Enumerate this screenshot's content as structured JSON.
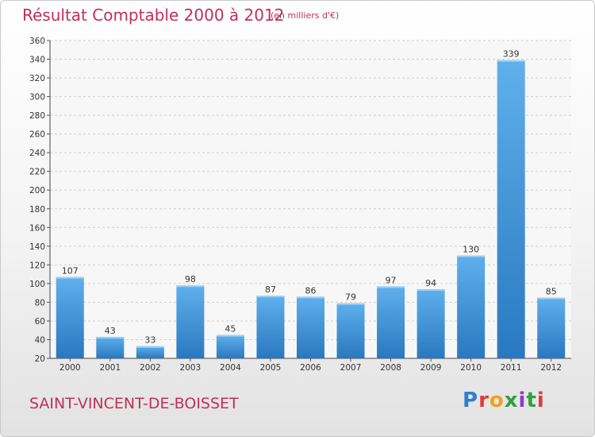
{
  "header": {
    "title": "Résultat Comptable 2000 à 2012",
    "subtitle": "(en milliers d'€)"
  },
  "footer": {
    "town": "SAINT-VINCENT-DE-BOISSET",
    "logo": "Proxiti",
    "logo_colors": [
      "#2f7fcf",
      "#e03a3a",
      "#f0a020",
      "#2f9f3f",
      "#8a3fbf",
      "#2f9f3f",
      "#e03a3a"
    ]
  },
  "chart_data": {
    "type": "bar",
    "title": "Résultat Comptable 2000 à 2012",
    "subtitle": "(en milliers d'€)",
    "categories": [
      "2000",
      "2001",
      "2002",
      "2003",
      "2004",
      "2005",
      "2006",
      "2007",
      "2008",
      "2009",
      "2010",
      "2011",
      "2012"
    ],
    "values": [
      107,
      43,
      33,
      98,
      45,
      87,
      86,
      79,
      97,
      94,
      130,
      339,
      85
    ],
    "ylim": [
      20,
      360
    ],
    "yticks": [
      20,
      40,
      60,
      80,
      100,
      120,
      140,
      160,
      180,
      200,
      220,
      240,
      260,
      280,
      300,
      320,
      340,
      360
    ],
    "grid": true,
    "bar_color": "#3a8fd8"
  }
}
